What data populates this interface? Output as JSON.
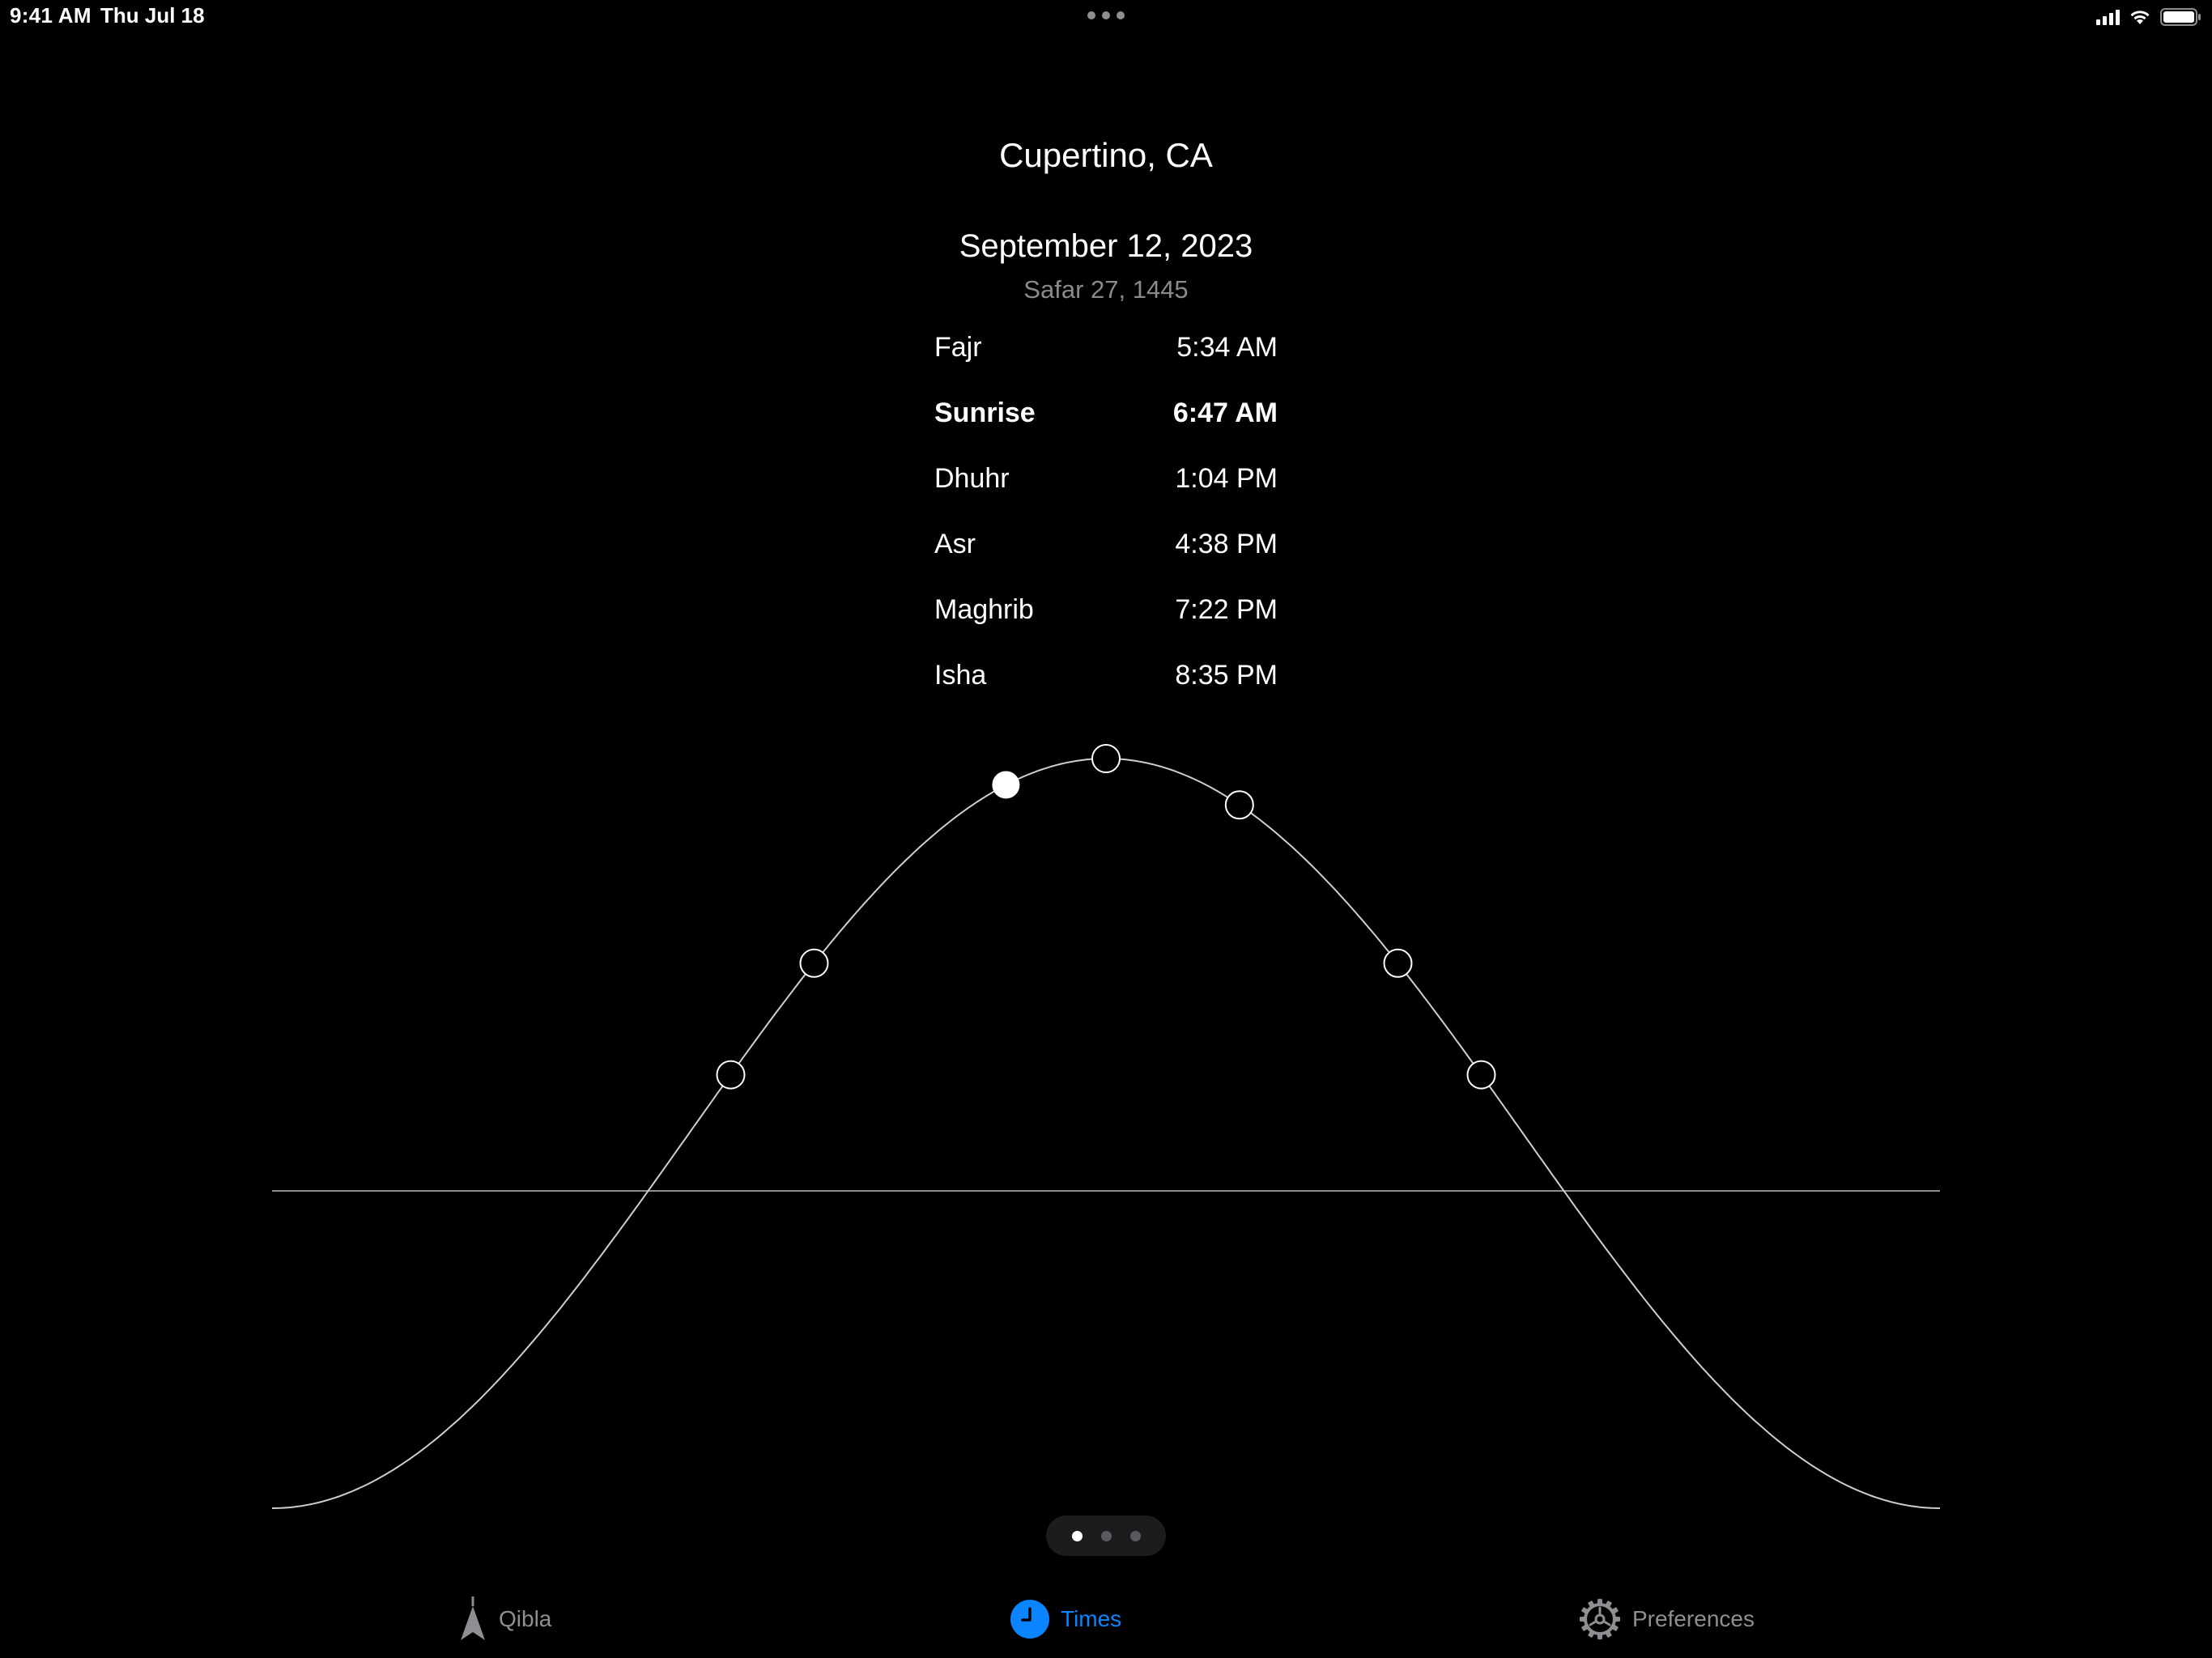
{
  "status_bar": {
    "time": "9:41 AM",
    "date": "Thu Jul 18",
    "icons": [
      "signal-icon",
      "wifi-icon",
      "battery-icon"
    ]
  },
  "header": {
    "location": "Cupertino, CA",
    "gregorian_date": "September 12, 2023",
    "hijri_date": "Safar 27, 1445"
  },
  "prayers": [
    {
      "name": "Fajr",
      "time": "5:34 AM",
      "current": false
    },
    {
      "name": "Sunrise",
      "time": "6:47 AM",
      "current": true
    },
    {
      "name": "Dhuhr",
      "time": "1:04 PM",
      "current": false
    },
    {
      "name": "Asr",
      "time": "4:38 PM",
      "current": false
    },
    {
      "name": "Maghrib",
      "time": "7:22 PM",
      "current": false
    },
    {
      "name": "Isha",
      "time": "8:35 PM",
      "current": false
    }
  ],
  "sun_chart": {
    "markers": [
      {
        "name": "fajr",
        "day_fraction": -0.225,
        "filled": false
      },
      {
        "name": "sunrise",
        "day_fraction": -0.175,
        "filled": false
      },
      {
        "name": "now",
        "day_fraction": -0.06,
        "filled": true
      },
      {
        "name": "dhuhr",
        "day_fraction": 0.0,
        "filled": false
      },
      {
        "name": "asr",
        "day_fraction": 0.08,
        "filled": false
      },
      {
        "name": "maghrib",
        "day_fraction": 0.175,
        "filled": false
      },
      {
        "name": "isha",
        "day_fraction": 0.225,
        "filled": false
      }
    ],
    "colors": {
      "curve": "#cfcfcf",
      "horizon": "#8e8e93",
      "marker": "#ffffff"
    }
  },
  "pager": {
    "count": 3,
    "active_index": 0
  },
  "tabs": [
    {
      "label": "Qibla",
      "icon": "qibla-arrow-icon",
      "active": false
    },
    {
      "label": "Times",
      "icon": "clock-icon",
      "active": true
    },
    {
      "label": "Preferences",
      "icon": "gear-icon",
      "active": false
    }
  ],
  "colors": {
    "accent": "#0a84ff",
    "background": "#000000",
    "secondary_text": "#8a8a8e"
  }
}
